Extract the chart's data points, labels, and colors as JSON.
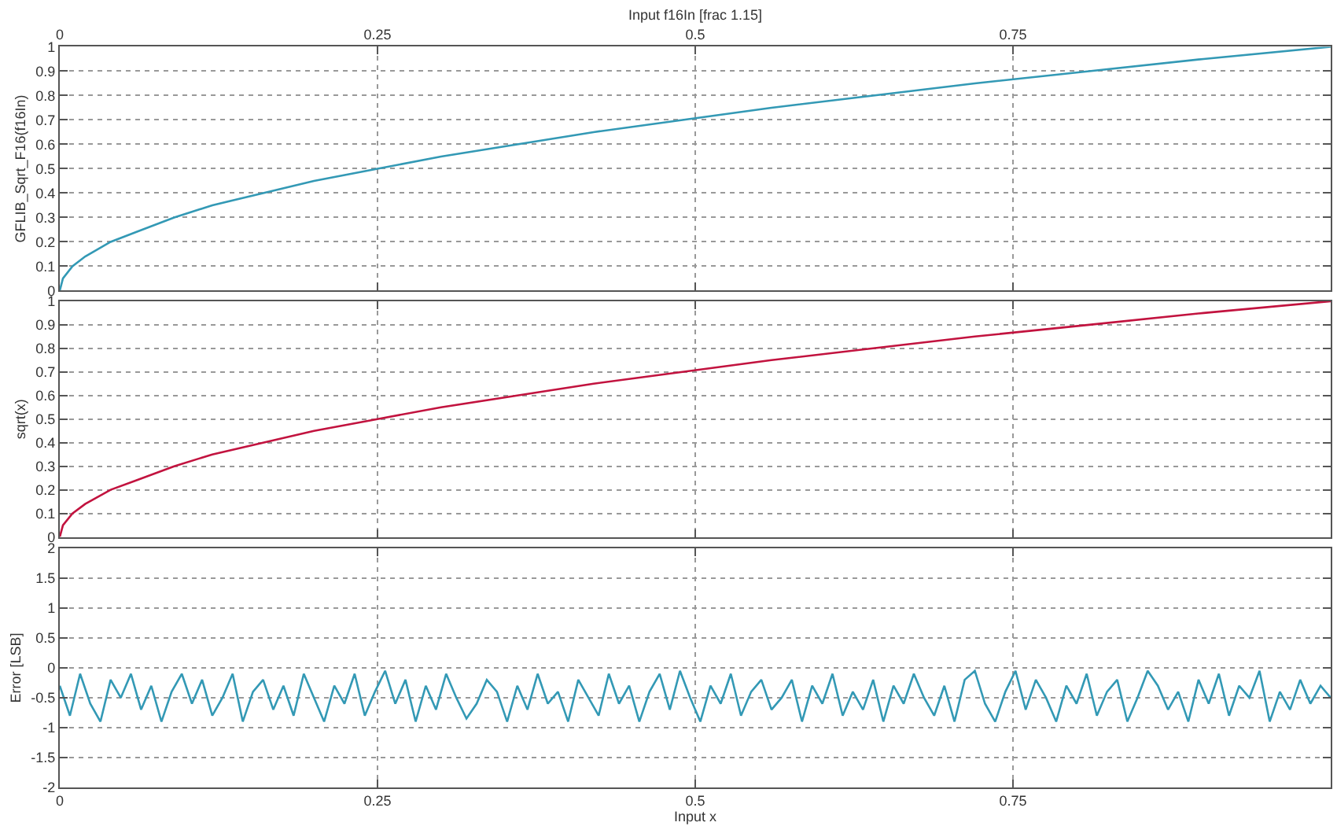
{
  "chart_data": [
    {
      "type": "line",
      "x2label": "Input f16In [frac 1.15]",
      "ylabel": "GFLIB_Sqrt_F16(f16In)",
      "xlim": [
        0,
        1
      ],
      "xticks": [
        0,
        0.25,
        0.5,
        0.75
      ],
      "x2lim": [
        0,
        1
      ],
      "x2ticks": [
        0,
        0.25,
        0.5,
        0.75
      ],
      "ylim": [
        0,
        1
      ],
      "yticks": [
        0,
        0.1,
        0.2,
        0.3,
        0.4,
        0.5,
        0.6,
        0.7,
        0.8,
        0.9,
        1
      ],
      "grid": true,
      "tick_labels": "y",
      "x": [
        0,
        0.0025,
        0.01,
        0.02,
        0.04,
        0.06,
        0.09,
        0.12,
        0.16,
        0.2,
        0.25,
        0.3,
        0.36,
        0.42,
        0.49,
        0.56,
        0.64,
        0.72,
        0.81,
        0.9,
        1
      ],
      "series": [
        {
          "color": "#3399b5",
          "values": [
            0,
            0.05,
            0.1,
            0.14,
            0.2,
            0.24,
            0.3,
            0.35,
            0.4,
            0.45,
            0.5,
            0.55,
            0.6,
            0.65,
            0.7,
            0.75,
            0.8,
            0.85,
            0.9,
            0.95,
            1
          ]
        }
      ]
    },
    {
      "type": "line",
      "ylabel": "sqrt(x)",
      "xlim": [
        0,
        1
      ],
      "xticks": [
        0,
        0.25,
        0.5,
        0.75
      ],
      "ylim": [
        0,
        1
      ],
      "yticks": [
        0,
        0.1,
        0.2,
        0.3,
        0.4,
        0.5,
        0.6,
        0.7,
        0.8,
        0.9,
        1
      ],
      "grid": true,
      "tick_labels": "y",
      "x": [
        0,
        0.0025,
        0.01,
        0.02,
        0.04,
        0.06,
        0.09,
        0.12,
        0.16,
        0.2,
        0.25,
        0.3,
        0.36,
        0.42,
        0.49,
        0.56,
        0.64,
        0.72,
        0.81,
        0.9,
        1
      ],
      "series": [
        {
          "color": "#c2133f",
          "values": [
            0,
            0.05,
            0.1,
            0.14,
            0.2,
            0.24,
            0.3,
            0.35,
            0.4,
            0.45,
            0.5,
            0.55,
            0.6,
            0.65,
            0.7,
            0.75,
            0.8,
            0.85,
            0.9,
            0.95,
            1
          ]
        }
      ]
    },
    {
      "type": "line",
      "xlabel": "Input x",
      "ylabel": "Error [LSB]",
      "xlim": [
        0,
        1
      ],
      "xticks": [
        0,
        0.25,
        0.5,
        0.75
      ],
      "ylim": [
        -2,
        2
      ],
      "yticks": [
        -2,
        -1.5,
        -1,
        -0.5,
        0,
        0.5,
        1,
        1.5,
        2
      ],
      "grid": true,
      "x": [
        0,
        0.008,
        0.016,
        0.024,
        0.032,
        0.04,
        0.048,
        0.056,
        0.064,
        0.072,
        0.08,
        0.088,
        0.096,
        0.104,
        0.112,
        0.12,
        0.128,
        0.136,
        0.144,
        0.152,
        0.16,
        0.168,
        0.176,
        0.184,
        0.192,
        0.2,
        0.208,
        0.216,
        0.224,
        0.232,
        0.24,
        0.248,
        0.256,
        0.264,
        0.272,
        0.28,
        0.288,
        0.296,
        0.304,
        0.312,
        0.32,
        0.328,
        0.336,
        0.344,
        0.352,
        0.36,
        0.368,
        0.376,
        0.384,
        0.392,
        0.4,
        0.408,
        0.416,
        0.424,
        0.432,
        0.44,
        0.448,
        0.456,
        0.464,
        0.472,
        0.48,
        0.488,
        0.496,
        0.504,
        0.512,
        0.52,
        0.528,
        0.536,
        0.544,
        0.552,
        0.56,
        0.568,
        0.576,
        0.584,
        0.592,
        0.6,
        0.608,
        0.616,
        0.624,
        0.632,
        0.64,
        0.648,
        0.656,
        0.664,
        0.672,
        0.68,
        0.688,
        0.696,
        0.704,
        0.712,
        0.72,
        0.728,
        0.736,
        0.744,
        0.752,
        0.76,
        0.768,
        0.776,
        0.784,
        0.792,
        0.8,
        0.808,
        0.816,
        0.824,
        0.832,
        0.84,
        0.848,
        0.856,
        0.864,
        0.872,
        0.88,
        0.888,
        0.896,
        0.904,
        0.912,
        0.92,
        0.928,
        0.936,
        0.944,
        0.952,
        0.96,
        0.968,
        0.976,
        0.984,
        0.992,
        1
      ],
      "series": [
        {
          "color": "#3399b5",
          "values": [
            -0.3,
            -0.8,
            -0.1,
            -0.6,
            -0.9,
            -0.2,
            -0.5,
            -0.1,
            -0.7,
            -0.3,
            -0.9,
            -0.4,
            -0.1,
            -0.6,
            -0.2,
            -0.8,
            -0.5,
            -0.1,
            -0.9,
            -0.4,
            -0.2,
            -0.7,
            -0.3,
            -0.8,
            -0.1,
            -0.5,
            -0.9,
            -0.3,
            -0.6,
            -0.1,
            -0.8,
            -0.4,
            -0.05,
            -0.6,
            -0.2,
            -0.9,
            -0.3,
            -0.7,
            -0.1,
            -0.5,
            -0.85,
            -0.6,
            -0.2,
            -0.4,
            -0.9,
            -0.3,
            -0.7,
            -0.1,
            -0.6,
            -0.4,
            -0.9,
            -0.2,
            -0.5,
            -0.8,
            -0.1,
            -0.6,
            -0.3,
            -0.9,
            -0.4,
            -0.1,
            -0.7,
            -0.05,
            -0.5,
            -0.9,
            -0.3,
            -0.6,
            -0.1,
            -0.8,
            -0.4,
            -0.2,
            -0.7,
            -0.5,
            -0.2,
            -0.9,
            -0.3,
            -0.6,
            -0.1,
            -0.8,
            -0.4,
            -0.7,
            -0.2,
            -0.9,
            -0.3,
            -0.6,
            -0.1,
            -0.5,
            -0.8,
            -0.3,
            -0.9,
            -0.2,
            -0.05,
            -0.6,
            -0.9,
            -0.4,
            -0.05,
            -0.7,
            -0.2,
            -0.5,
            -0.9,
            -0.3,
            -0.6,
            -0.1,
            -0.8,
            -0.4,
            -0.2,
            -0.9,
            -0.5,
            -0.05,
            -0.3,
            -0.7,
            -0.4,
            -0.9,
            -0.2,
            -0.6,
            -0.1,
            -0.8,
            -0.3,
            -0.5,
            -0.05,
            -0.9,
            -0.4,
            -0.7,
            -0.2,
            -0.6,
            -0.3,
            -0.5
          ]
        }
      ]
    }
  ]
}
